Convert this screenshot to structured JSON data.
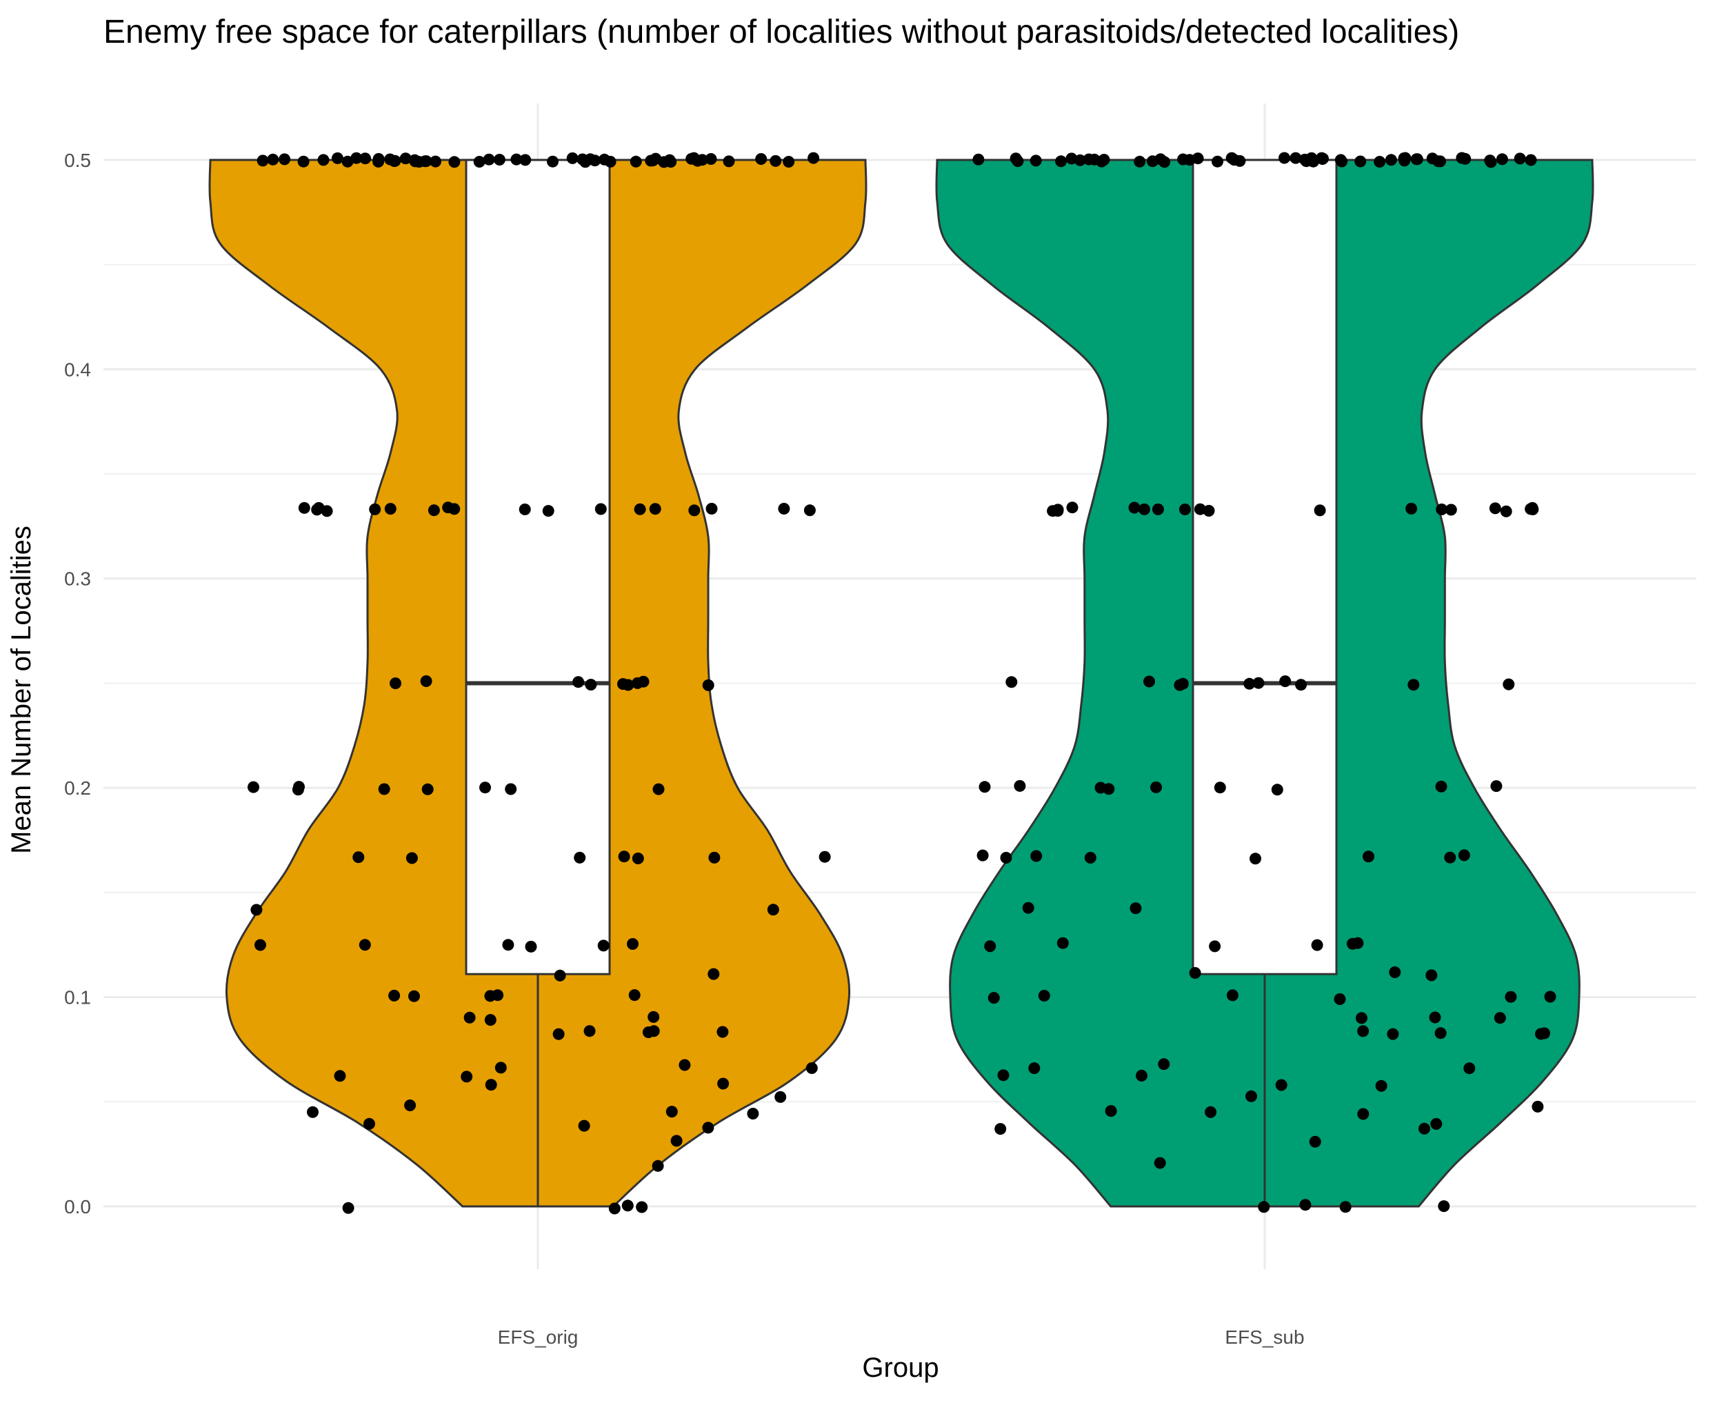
{
  "chart_data": {
    "type": "violin",
    "title": "Enemy free space for caterpillars (number of localities without parasitoids/detected localities)",
    "xlabel": "Group",
    "ylabel": "Mean Number of Localities",
    "ylim": [
      0,
      0.5
    ],
    "yticks": [
      "0.0",
      "0.1",
      "0.2",
      "0.3",
      "0.4",
      "0.5"
    ],
    "categories": [
      "EFS_orig",
      "EFS_sub"
    ],
    "grid": true,
    "legend": "none",
    "groups": [
      {
        "name": "EFS_orig",
        "color": "#E69F00",
        "box": {
          "min": 0,
          "q1": 0.111,
          "median": 0.25,
          "q3": 0.5,
          "max": 0.5
        },
        "violin_profile": {
          "y": [
            0,
            0.02,
            0.04,
            0.06,
            0.08,
            0.1,
            0.12,
            0.14,
            0.16,
            0.18,
            0.2,
            0.22,
            0.24,
            0.26,
            0.28,
            0.3,
            0.32,
            0.34,
            0.36,
            0.38,
            0.4,
            0.42,
            0.44,
            0.46,
            0.48,
            0.5
          ],
          "w": [
            0.23,
            0.37,
            0.55,
            0.77,
            0.91,
            0.95,
            0.93,
            0.86,
            0.77,
            0.7,
            0.61,
            0.56,
            0.53,
            0.52,
            0.52,
            0.52,
            0.52,
            0.49,
            0.45,
            0.43,
            0.48,
            0.64,
            0.82,
            0.97,
            1.0,
            1.0
          ]
        },
        "points": [
          0,
          0,
          0,
          0,
          0.02,
          0.031,
          0.037,
          0.038,
          0.04,
          0.045,
          0.045,
          0.045,
          0.048,
          0.053,
          0.058,
          0.058,
          0.062,
          0.062,
          0.066,
          0.067,
          0.067,
          0.083,
          0.083,
          0.083,
          0.083,
          0.083,
          0.09,
          0.09,
          0.09,
          0.1,
          0.1,
          0.1,
          0.1,
          0.1,
          0.111,
          0.111,
          0.125,
          0.125,
          0.125,
          0.125,
          0.125,
          0.125,
          0.142,
          0.142,
          0.167,
          0.167,
          0.167,
          0.167,
          0.167,
          0.167,
          0.167,
          0.2,
          0.2,
          0.2,
          0.2,
          0.2,
          0.2,
          0.2,
          0.2,
          0.25,
          0.25,
          0.25,
          0.25,
          0.25,
          0.25,
          0.25,
          0.25,
          0.25,
          0.333,
          0.333,
          0.333,
          0.333,
          0.333,
          0.333,
          0.333,
          0.333,
          0.333,
          0.333,
          0.333,
          0.333,
          0.333,
          0.333,
          0.333,
          0.333,
          0.333,
          0.333,
          0.5,
          0.5,
          0.5,
          0.5,
          0.5,
          0.5,
          0.5,
          0.5,
          0.5,
          0.5,
          0.5,
          0.5,
          0.5,
          0.5,
          0.5,
          0.5,
          0.5,
          0.5,
          0.5,
          0.5,
          0.5,
          0.5,
          0.5,
          0.5,
          0.5,
          0.5,
          0.5,
          0.5,
          0.5,
          0.5,
          0.5,
          0.5,
          0.5,
          0.5,
          0.5,
          0.5,
          0.5,
          0.5,
          0.5,
          0.5,
          0.5,
          0.5,
          0.5,
          0.5,
          0.5,
          0.5,
          0.5,
          0.5,
          0.5,
          0.5,
          0.5,
          0.5
        ]
      },
      {
        "name": "EFS_sub",
        "color": "#009E73",
        "box": {
          "min": 0,
          "q1": 0.111,
          "median": 0.25,
          "q3": 0.5,
          "max": 0.5
        },
        "violin_profile": {
          "y": [
            0,
            0.02,
            0.04,
            0.06,
            0.08,
            0.1,
            0.12,
            0.14,
            0.16,
            0.18,
            0.2,
            0.22,
            0.24,
            0.26,
            0.28,
            0.3,
            0.32,
            0.34,
            0.36,
            0.38,
            0.4,
            0.42,
            0.44,
            0.46,
            0.48,
            0.5
          ],
          "w": [
            0.47,
            0.58,
            0.72,
            0.85,
            0.94,
            0.96,
            0.95,
            0.89,
            0.81,
            0.72,
            0.64,
            0.58,
            0.56,
            0.55,
            0.55,
            0.55,
            0.55,
            0.52,
            0.49,
            0.48,
            0.52,
            0.66,
            0.83,
            0.97,
            1.0,
            1.0
          ]
        },
        "points": [
          0,
          0,
          0,
          0,
          0.02,
          0.031,
          0.037,
          0.038,
          0.04,
          0.045,
          0.045,
          0.045,
          0.048,
          0.053,
          0.058,
          0.058,
          0.062,
          0.062,
          0.066,
          0.067,
          0.067,
          0.083,
          0.083,
          0.083,
          0.083,
          0.083,
          0.09,
          0.09,
          0.09,
          0.1,
          0.1,
          0.1,
          0.1,
          0.1,
          0.1,
          0.111,
          0.111,
          0.111,
          0.125,
          0.125,
          0.125,
          0.125,
          0.125,
          0.125,
          0.142,
          0.142,
          0.167,
          0.167,
          0.167,
          0.167,
          0.167,
          0.167,
          0.167,
          0.167,
          0.2,
          0.2,
          0.2,
          0.2,
          0.2,
          0.2,
          0.2,
          0.2,
          0.2,
          0.25,
          0.25,
          0.25,
          0.25,
          0.25,
          0.25,
          0.25,
          0.25,
          0.25,
          0.25,
          0.333,
          0.333,
          0.333,
          0.333,
          0.333,
          0.333,
          0.333,
          0.333,
          0.333,
          0.333,
          0.333,
          0.333,
          0.333,
          0.333,
          0.333,
          0.333,
          0.333,
          0.333,
          0.333,
          0.5,
          0.5,
          0.5,
          0.5,
          0.5,
          0.5,
          0.5,
          0.5,
          0.5,
          0.5,
          0.5,
          0.5,
          0.5,
          0.5,
          0.5,
          0.5,
          0.5,
          0.5,
          0.5,
          0.5,
          0.5,
          0.5,
          0.5,
          0.5,
          0.5,
          0.5,
          0.5,
          0.5,
          0.5,
          0.5,
          0.5,
          0.5,
          0.5,
          0.5,
          0.5,
          0.5,
          0.5,
          0.5,
          0.5,
          0.5,
          0.5,
          0.5,
          0.5,
          0.5,
          0.5,
          0.5,
          0.5,
          0.5,
          0.5,
          0.5,
          0.5
        ]
      }
    ]
  }
}
